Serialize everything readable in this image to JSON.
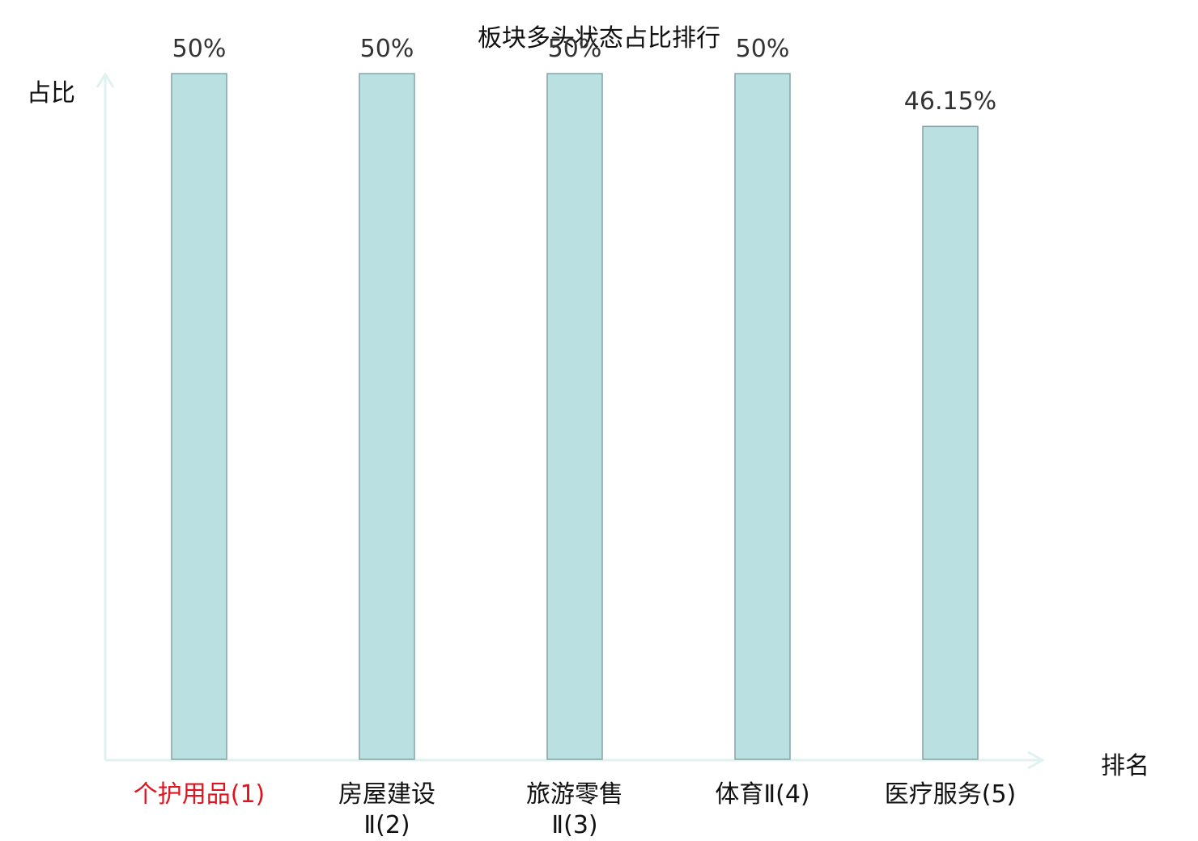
{
  "chart_data": {
    "type": "bar",
    "title": "板块多头状态占比排行",
    "ylabel": "占比",
    "xlabel": "排名",
    "categories": [
      "个护用品(1)",
      "房屋建设Ⅱ(2)",
      "旅游零售Ⅱ(3)",
      "体育Ⅱ(4)",
      "医疗服务(5)"
    ],
    "category_lines": [
      [
        "个护用品(1)"
      ],
      [
        "房屋建设",
        "Ⅱ(2)"
      ],
      [
        "旅游零售",
        "Ⅱ(3)"
      ],
      [
        "体育Ⅱ(4)"
      ],
      [
        "医疗服务(5)"
      ]
    ],
    "values": [
      50,
      50,
      50,
      50,
      46.15
    ],
    "value_labels": [
      "50%",
      "50%",
      "50%",
      "50%",
      "46.15%"
    ],
    "highlight_index": 0,
    "ylim": [
      0,
      50
    ],
    "grid": false,
    "colors": {
      "bar_fill": "#bbe0e2",
      "bar_stroke": "#86a4a6",
      "axis": "#dff2ef",
      "highlight_text": "#e0141e"
    }
  }
}
